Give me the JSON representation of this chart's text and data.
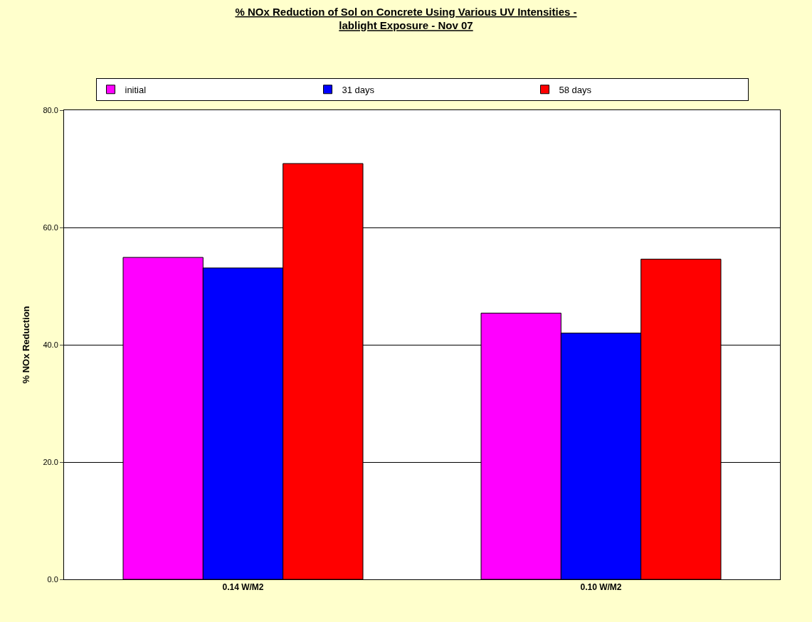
{
  "chart_data": {
    "type": "bar",
    "title": "% NOx Reduction of Sol on Concrete Using Various UV Intensities - lablight Exposure - Nov 07",
    "ylabel": "% NOx Reduction",
    "categories": [
      "0.14 W/M2",
      "0.10 W/M2"
    ],
    "series": [
      {
        "name": "initial",
        "color": "#ff00ff",
        "values": [
          54.9,
          45.4
        ]
      },
      {
        "name": "31 days",
        "color": "#0000ff",
        "values": [
          53.1,
          42.0
        ]
      },
      {
        "name": "58 days",
        "color": "#ff0000",
        "values": [
          70.9,
          54.6
        ]
      }
    ],
    "ylim": [
      0,
      80
    ],
    "yticks": [
      {
        "value": 0,
        "label": "0.0"
      },
      {
        "value": 20,
        "label": "20.0"
      },
      {
        "value": 40,
        "label": "40.0"
      },
      {
        "value": 60,
        "label": "60.0"
      },
      {
        "value": 80,
        "label": "80.0"
      }
    ],
    "grid": "y",
    "legend": "top"
  }
}
